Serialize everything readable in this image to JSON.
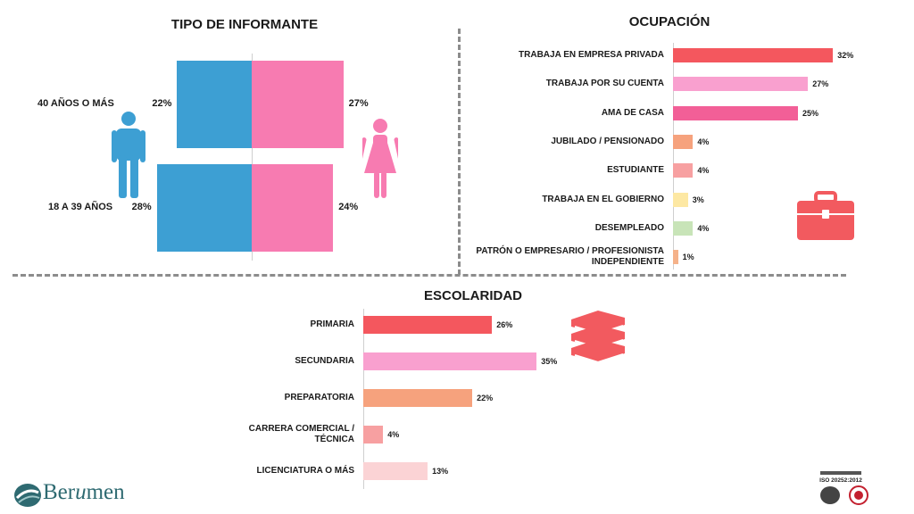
{
  "colors": {
    "blue": "#3d9fd3",
    "pink": "#f77bb1",
    "red": "#f4575e",
    "light_pink": "#f9a0cf",
    "hot_pink": "#f25f97",
    "orange": "#f6a27d",
    "salmon": "#f7a0a1",
    "yellow": "#fde8a3",
    "green": "#c8e4b8",
    "peach": "#f5b28a",
    "pale_pink": "#fbd3d5",
    "icon_red": "#f25a5f",
    "brand": "#2e6a71"
  },
  "icons": {
    "male": "man-figure-icon",
    "female": "woman-figure-icon",
    "briefcase": "briefcase-icon",
    "books": "books-icon"
  },
  "brand": {
    "name_part1": "Ber",
    "name_part2": "u",
    "name_part3": "men"
  },
  "iso": {
    "text": "ISO 20252:2012"
  },
  "chart_data": [
    {
      "type": "bar",
      "orientation": "horizontal-diverging",
      "title": "TIPO DE INFORMANTE",
      "categories": [
        "40 AÑOS O MÁS",
        "18 A 39 AÑOS"
      ],
      "series": [
        {
          "values": [
            22,
            28
          ],
          "labels": [
            "22%",
            "28%"
          ],
          "color": "#3d9fd3"
        },
        {
          "values": [
            27,
            24
          ],
          "labels": [
            "27%",
            "24%"
          ],
          "color": "#f77bb1"
        }
      ],
      "unit": "%",
      "grid": false,
      "legend": "none"
    },
    {
      "type": "bar",
      "orientation": "horizontal",
      "title": "OCUPACIÓN",
      "categories": [
        "TRABAJA EN EMPRESA PRIVADA",
        "TRABAJA POR SU CUENTA",
        "AMA DE CASA",
        "JUBILADO / PENSIONADO",
        "ESTUDIANTE",
        "TRABAJA EN EL GOBIERNO",
        "DESEMPLEADO",
        "PATRÓN O EMPRESARIO / PROFESIONISTA INDEPENDIENTE"
      ],
      "values": [
        32,
        27,
        25,
        4,
        4,
        3,
        4,
        1
      ],
      "labels": [
        "32%",
        "27%",
        "25%",
        "4%",
        "4%",
        "3%",
        "4%",
        "1%"
      ],
      "colors": [
        "#f4575e",
        "#f9a0cf",
        "#f25f97",
        "#f6a27d",
        "#f7a0a1",
        "#fde8a3",
        "#c8e4b8",
        "#f5b28a"
      ],
      "unit": "%",
      "grid": false,
      "legend": "none"
    },
    {
      "type": "bar",
      "orientation": "horizontal",
      "title": "ESCOLARIDAD",
      "categories": [
        "PRIMARIA",
        "SECUNDARIA",
        "PREPARATORIA",
        "CARRERA COMERCIAL / TÉCNICA",
        "LICENCIATURA O MÁS"
      ],
      "values": [
        26,
        35,
        22,
        4,
        13
      ],
      "labels": [
        "26%",
        "35%",
        "22%",
        "4%",
        "13%"
      ],
      "colors": [
        "#f4575e",
        "#f9a0cf",
        "#f6a27d",
        "#f7a0a1",
        "#fbd3d5"
      ],
      "unit": "%",
      "grid": false,
      "legend": "none"
    }
  ]
}
